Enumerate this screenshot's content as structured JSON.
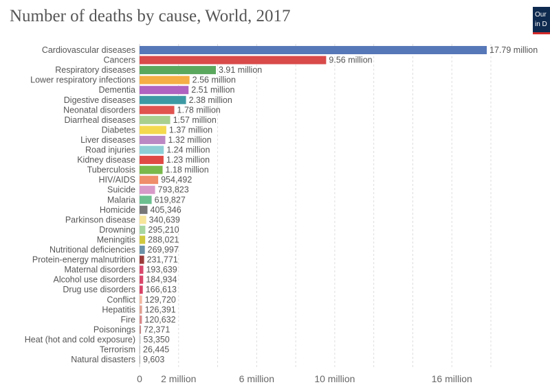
{
  "header": {
    "title": "Number of deaths by cause, World, 2017",
    "logo_line1": "Our",
    "logo_line2": "in D"
  },
  "colors": {
    "background": "#ffffff",
    "title": "#555555",
    "label": "#555555",
    "grid": "#dddddd",
    "logo_bg": "#0f2a4f",
    "logo_accent": "#d42b2b"
  },
  "chart_data": {
    "type": "bar",
    "orientation": "horizontal",
    "title": "Number of deaths by cause, World, 2017",
    "xlabel": "",
    "ylabel": "",
    "xlim": [
      0,
      18000000
    ],
    "grid": true,
    "x_ticks": [
      {
        "value": 0,
        "label": "0"
      },
      {
        "value": 2000000,
        "label": "2 million"
      },
      {
        "value": 6000000,
        "label": "6 million"
      },
      {
        "value": 10000000,
        "label": "10 million"
      },
      {
        "value": 16000000,
        "label": "16 million"
      }
    ],
    "gridlines": [
      4000000,
      8000000,
      12000000,
      14000000,
      18000000
    ],
    "bars": [
      {
        "category": "Cardiovascular diseases",
        "value": 17790000,
        "label": "17.79 million",
        "color": "#5778b8"
      },
      {
        "category": "Cancers",
        "value": 9560000,
        "label": "9.56 million",
        "color": "#d94a4a"
      },
      {
        "category": "Respiratory diseases",
        "value": 3910000,
        "label": "3.91 million",
        "color": "#5aa85e"
      },
      {
        "category": "Lower respiratory infections",
        "value": 2560000,
        "label": "2.56 million",
        "color": "#f5ae45"
      },
      {
        "category": "Dementia",
        "value": 2510000,
        "label": "2.51 million",
        "color": "#b063c0"
      },
      {
        "category": "Digestive diseases",
        "value": 2380000,
        "label": "2.38 million",
        "color": "#3d9aa4"
      },
      {
        "category": "Neonatal disorders",
        "value": 1780000,
        "label": "1.78 million",
        "color": "#e0534f"
      },
      {
        "category": "Diarrheal diseases",
        "value": 1570000,
        "label": "1.57 million",
        "color": "#a9cf8f"
      },
      {
        "category": "Diabetes",
        "value": 1370000,
        "label": "1.37 million",
        "color": "#f4d94f"
      },
      {
        "category": "Liver diseases",
        "value": 1320000,
        "label": "1.32 million",
        "color": "#bb88c4"
      },
      {
        "category": "Road injuries",
        "value": 1240000,
        "label": "1.24 million",
        "color": "#8ecfd6"
      },
      {
        "category": "Kidney disease",
        "value": 1230000,
        "label": "1.23 million",
        "color": "#e04a45"
      },
      {
        "category": "Tuberculosis",
        "value": 1180000,
        "label": "1.18 million",
        "color": "#79b84a"
      },
      {
        "category": "HIV/AIDS",
        "value": 954492,
        "label": "954,492",
        "color": "#ef8e6a"
      },
      {
        "category": "Suicide",
        "value": 793823,
        "label": "793,823",
        "color": "#d89ac8"
      },
      {
        "category": "Malaria",
        "value": 619827,
        "label": "619,827",
        "color": "#6cc08f"
      },
      {
        "category": "Homicide",
        "value": 405346,
        "label": "405,346",
        "color": "#777777"
      },
      {
        "category": "Parkinson disease",
        "value": 340639,
        "label": "340,639",
        "color": "#f7e59a"
      },
      {
        "category": "Drowning",
        "value": 295210,
        "label": "295,210",
        "color": "#a8d6a1"
      },
      {
        "category": "Meningitis",
        "value": 288021,
        "label": "288,021",
        "color": "#d0c940"
      },
      {
        "category": "Nutritional deficiencies",
        "value": 269997,
        "label": "269,997",
        "color": "#6b92a8"
      },
      {
        "category": "Protein-energy malnutrition",
        "value": 231771,
        "label": "231,771",
        "color": "#9c3b3b"
      },
      {
        "category": "Maternal disorders",
        "value": 193639,
        "label": "193,639",
        "color": "#d84a6e"
      },
      {
        "category": "Alcohol use disorders",
        "value": 184934,
        "label": "184,934",
        "color": "#d9486c"
      },
      {
        "category": "Drug use disorders",
        "value": 166613,
        "label": "166,613",
        "color": "#d94468"
      },
      {
        "category": "Conflict",
        "value": 129720,
        "label": "129,720",
        "color": "#f2b7a2"
      },
      {
        "category": "Hepatitis",
        "value": 126391,
        "label": "126,391",
        "color": "#e0a090"
      },
      {
        "category": "Fire",
        "value": 120632,
        "label": "120,632",
        "color": "#d98888"
      },
      {
        "category": "Poisonings",
        "value": 72371,
        "label": "72,371",
        "color": "#c28a8a"
      },
      {
        "category": "Heat (hot and cold exposure)",
        "value": 53350,
        "label": "53,350",
        "color": "#c8c8c8"
      },
      {
        "category": "Terrorism",
        "value": 26445,
        "label": "26,445",
        "color": "#bbbbbb"
      },
      {
        "category": "Natural disasters",
        "value": 9603,
        "label": "9,603",
        "color": "#aaaaaa"
      }
    ]
  }
}
